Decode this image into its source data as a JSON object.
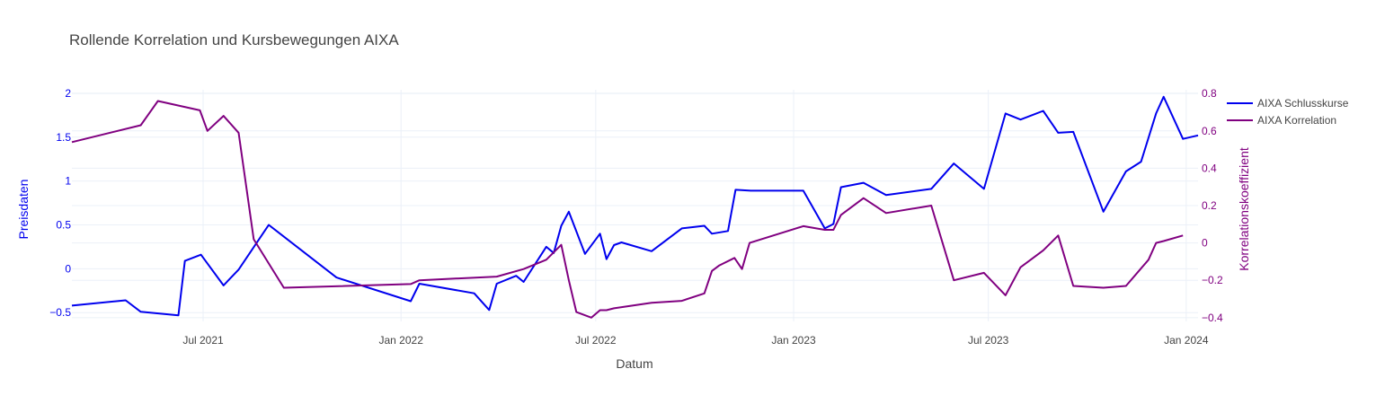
{
  "chart_data": {
    "type": "line",
    "title": "Rollende Korrelation und Kursbewegungen AIXA",
    "xlabel": "Datum",
    "ylabel": "Preisdaten",
    "y2label": "Korrelationskoeffizient",
    "xlim": [
      "2021-03-01",
      "2024-01-12"
    ],
    "ylim": [
      -0.6,
      2.04
    ],
    "y2lim": [
      -0.42,
      0.82
    ],
    "x_ticks": [
      {
        "date": "2021-07-01",
        "label": "Jul 2021"
      },
      {
        "date": "2022-01-01",
        "label": "Jan 2022"
      },
      {
        "date": "2022-07-01",
        "label": "Jul 2022"
      },
      {
        "date": "2023-01-01",
        "label": "Jan 2023"
      },
      {
        "date": "2023-07-01",
        "label": "Jul 2023"
      },
      {
        "date": "2024-01-01",
        "label": "Jan 2024"
      }
    ],
    "y_ticks": [
      {
        "value": -0.5,
        "label": "−0.5"
      },
      {
        "value": 0,
        "label": "0"
      },
      {
        "value": 0.5,
        "label": "0.5"
      },
      {
        "value": 1,
        "label": "1"
      },
      {
        "value": 1.5,
        "label": "1.5"
      },
      {
        "value": 2,
        "label": "2"
      }
    ],
    "y2_ticks": [
      {
        "value": -0.4,
        "label": "−0.4"
      },
      {
        "value": -0.2,
        "label": "−0.2"
      },
      {
        "value": 0,
        "label": "0"
      },
      {
        "value": 0.2,
        "label": "0.2"
      },
      {
        "value": 0.4,
        "label": "0.4"
      },
      {
        "value": 0.6,
        "label": "0.6"
      },
      {
        "value": 0.8,
        "label": "0.8"
      }
    ],
    "grid": true,
    "legend_position": "top-right",
    "series": [
      {
        "name": "AIXA Schlusskurse",
        "color": "#0000ee",
        "axis": "y",
        "x": [
          "2021-03-01",
          "2021-04-20",
          "2021-05-04",
          "2021-06-08",
          "2021-06-14",
          "2021-06-29",
          "2021-07-20",
          "2021-08-03",
          "2021-08-31",
          "2021-11-02",
          "2022-01-10",
          "2022-01-18",
          "2022-03-10",
          "2022-03-24",
          "2022-03-31",
          "2022-04-18",
          "2022-04-25",
          "2022-05-16",
          "2022-05-23",
          "2022-05-30",
          "2022-06-06",
          "2022-06-21",
          "2022-07-05",
          "2022-07-11",
          "2022-07-18",
          "2022-07-25",
          "2022-08-22",
          "2022-09-19",
          "2022-10-10",
          "2022-10-17",
          "2022-11-01",
          "2022-11-08",
          "2022-11-22",
          "2023-01-10",
          "2023-01-30",
          "2023-02-07",
          "2023-02-14",
          "2023-03-07",
          "2023-03-28",
          "2023-05-09",
          "2023-05-30",
          "2023-06-27",
          "2023-07-17",
          "2023-07-31",
          "2023-08-21",
          "2023-09-04",
          "2023-09-18",
          "2023-10-16",
          "2023-11-06",
          "2023-11-20",
          "2023-12-04",
          "2023-12-11",
          "2023-12-29",
          "2024-01-12"
        ],
        "values": [
          -0.42,
          -0.36,
          -0.49,
          -0.53,
          0.09,
          0.16,
          -0.19,
          -0.01,
          0.5,
          -0.1,
          -0.37,
          -0.17,
          -0.28,
          -0.47,
          -0.17,
          -0.08,
          -0.15,
          0.25,
          0.18,
          0.49,
          0.65,
          0.17,
          0.4,
          0.11,
          0.27,
          0.3,
          0.2,
          0.46,
          0.49,
          0.4,
          0.43,
          0.9,
          0.89,
          0.89,
          0.46,
          0.51,
          0.93,
          0.98,
          0.84,
          0.91,
          1.2,
          0.91,
          1.77,
          1.7,
          1.8,
          1.55,
          1.56,
          0.65,
          1.11,
          1.22,
          1.77,
          1.96,
          1.48,
          1.52
        ]
      },
      {
        "name": "AIXA Korrelation",
        "color": "#800080",
        "axis": "y2",
        "x": [
          "2021-03-01",
          "2021-05-04",
          "2021-05-20",
          "2021-06-28",
          "2021-07-05",
          "2021-07-20",
          "2021-08-03",
          "2021-08-17",
          "2021-09-14",
          "2022-01-10",
          "2022-01-18",
          "2022-03-31",
          "2022-04-25",
          "2022-05-16",
          "2022-05-30",
          "2022-06-06",
          "2022-06-13",
          "2022-06-27",
          "2022-07-05",
          "2022-07-11",
          "2022-07-18",
          "2022-08-22",
          "2022-09-19",
          "2022-10-10",
          "2022-10-17",
          "2022-10-24",
          "2022-11-07",
          "2022-11-14",
          "2022-11-21",
          "2023-01-10",
          "2023-01-30",
          "2023-02-07",
          "2023-02-14",
          "2023-03-07",
          "2023-03-28",
          "2023-05-09",
          "2023-05-30",
          "2023-06-27",
          "2023-07-17",
          "2023-07-31",
          "2023-08-21",
          "2023-09-04",
          "2023-09-18",
          "2023-10-16",
          "2023-11-06",
          "2023-11-27",
          "2023-12-04",
          "2023-12-11",
          "2023-12-29"
        ],
        "values": [
          0.54,
          0.63,
          0.76,
          0.71,
          0.6,
          0.68,
          0.59,
          0.02,
          -0.24,
          -0.22,
          -0.2,
          -0.18,
          -0.14,
          -0.09,
          -0.01,
          -0.2,
          -0.37,
          -0.4,
          -0.36,
          -0.36,
          -0.35,
          -0.32,
          -0.31,
          -0.27,
          -0.15,
          -0.12,
          -0.08,
          -0.14,
          0.0,
          0.09,
          0.07,
          0.07,
          0.15,
          0.24,
          0.16,
          0.2,
          -0.2,
          -0.16,
          -0.28,
          -0.13,
          -0.04,
          0.04,
          -0.23,
          -0.24,
          -0.23,
          -0.09,
          0.0,
          0.01,
          0.04
        ]
      }
    ]
  }
}
